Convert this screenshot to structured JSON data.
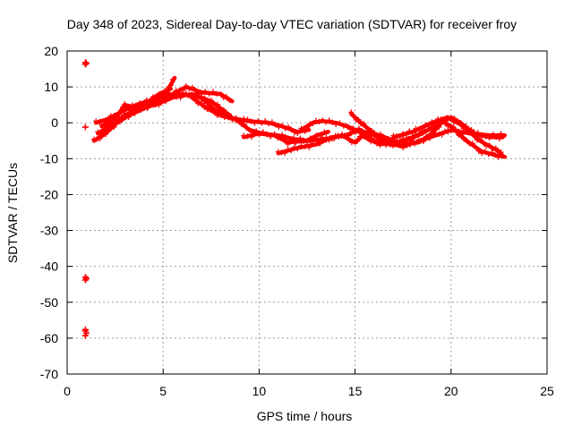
{
  "chart_data": {
    "type": "scatter",
    "title": "Day 348 of 2023, Sidereal Day-to-day VTEC variation (SDTVAR) for receiver froy",
    "xlabel": "GPS time / hours",
    "ylabel": "SDTVAR / TECUs",
    "xlim": [
      0,
      25
    ],
    "ylim": [
      -70,
      20
    ],
    "xticks": [
      "0",
      "5",
      "10",
      "15",
      "20",
      "25"
    ],
    "yticks": [
      "20",
      "10",
      "0",
      "-10",
      "-20",
      "-30",
      "-40",
      "-50",
      "-60",
      "-70"
    ],
    "grid": true,
    "marker": "+",
    "series_color": "#ff0000",
    "outliers": [
      {
        "x": 0.95,
        "y": 16.8
      },
      {
        "x": 0.95,
        "y": 16.3
      },
      {
        "x": 1.0,
        "y": 16.6
      },
      {
        "x": 0.95,
        "y": -1.2
      },
      {
        "x": 0.95,
        "y": -43.0
      },
      {
        "x": 0.95,
        "y": -43.8
      },
      {
        "x": 1.0,
        "y": -43.4
      },
      {
        "x": 0.95,
        "y": -58.0
      },
      {
        "x": 0.95,
        "y": -59.3
      },
      {
        "x": 1.0,
        "y": -58.6
      },
      {
        "x": 0.95,
        "y": -57.6
      }
    ],
    "tracks": [
      [
        [
          1.4,
          -5
        ],
        [
          2,
          -3
        ],
        [
          2.6,
          0
        ],
        [
          3.2,
          2
        ],
        [
          4,
          4
        ],
        [
          5,
          7
        ],
        [
          5.6,
          12.5
        ]
      ],
      [
        [
          1.6,
          -3
        ],
        [
          2.2,
          -1
        ],
        [
          3,
          2
        ],
        [
          4,
          5
        ],
        [
          4.8,
          8
        ],
        [
          5.4,
          9.5
        ]
      ],
      [
        [
          1.5,
          0
        ],
        [
          2.1,
          1
        ],
        [
          2.8,
          3
        ],
        [
          3.6,
          5
        ],
        [
          4.5,
          6.5
        ],
        [
          5.5,
          8
        ]
      ],
      [
        [
          1.8,
          -1
        ],
        [
          2.5,
          1
        ],
        [
          3,
          5
        ],
        [
          3.8,
          4
        ],
        [
          4.6,
          5
        ],
        [
          5.5,
          7
        ],
        [
          6.5,
          8
        ],
        [
          7.5,
          6
        ],
        [
          8,
          4
        ],
        [
          8.5,
          2
        ]
      ],
      [
        [
          4.5,
          5
        ],
        [
          5.5,
          8
        ],
        [
          6.2,
          10
        ],
        [
          7,
          8.5
        ],
        [
          8,
          8
        ],
        [
          8.6,
          6
        ]
      ],
      [
        [
          5,
          7
        ],
        [
          6,
          8
        ],
        [
          7,
          7
        ],
        [
          7.6,
          4
        ],
        [
          8.4,
          1.5
        ],
        [
          9.4,
          0.5
        ],
        [
          10.5,
          0
        ],
        [
          11.2,
          -1
        ],
        [
          12,
          -2.5
        ],
        [
          12.6,
          -2
        ]
      ],
      [
        [
          6.5,
          7
        ],
        [
          7.3,
          4
        ],
        [
          8,
          2
        ],
        [
          8.8,
          1
        ],
        [
          9.5,
          -2
        ],
        [
          10.2,
          -3
        ],
        [
          11,
          -3.5
        ],
        [
          11.8,
          -4.5
        ],
        [
          12.5,
          -5
        ],
        [
          13,
          -3.5
        ],
        [
          13.6,
          -2.5
        ]
      ],
      [
        [
          9.2,
          -4
        ],
        [
          10,
          -3
        ],
        [
          10.8,
          -3.5
        ],
        [
          11.5,
          -5.5
        ],
        [
          12.5,
          -5
        ],
        [
          13.5,
          -4.5
        ],
        [
          14.3,
          -3.5
        ],
        [
          15,
          -5.5
        ],
        [
          15.5,
          -3
        ]
      ],
      [
        [
          11,
          -8.5
        ],
        [
          12,
          -7
        ],
        [
          13,
          -6
        ],
        [
          13.8,
          -4
        ],
        [
          14.5,
          -3.5
        ],
        [
          15.2,
          -2
        ],
        [
          16,
          -3.5
        ],
        [
          16.8,
          -6
        ],
        [
          17.6,
          -5
        ],
        [
          18.5,
          -3
        ]
      ],
      [
        [
          12.2,
          -2
        ],
        [
          12.8,
          0
        ],
        [
          13.3,
          0.5
        ],
        [
          14,
          0
        ],
        [
          14.6,
          -1
        ],
        [
          15.2,
          -2.5
        ],
        [
          16,
          -5
        ],
        [
          16.8,
          -6
        ],
        [
          17.5,
          -6.5
        ],
        [
          18.4,
          -5
        ],
        [
          19.2,
          -3.5
        ],
        [
          20,
          -2
        ],
        [
          21,
          -3
        ],
        [
          22,
          -3.5
        ],
        [
          22.8,
          -3.5
        ]
      ],
      [
        [
          14.8,
          2.5
        ],
        [
          15.3,
          0
        ],
        [
          16,
          -3
        ],
        [
          16.8,
          -4.5
        ],
        [
          17.5,
          -6
        ],
        [
          18.3,
          -5.5
        ],
        [
          19,
          -3
        ],
        [
          19.5,
          0
        ],
        [
          20,
          1.5
        ],
        [
          20.5,
          0
        ],
        [
          21.2,
          -3
        ],
        [
          22,
          -4
        ],
        [
          22.7,
          -4
        ]
      ],
      [
        [
          15.5,
          -4
        ],
        [
          16.3,
          -6
        ],
        [
          17.2,
          -5.5
        ],
        [
          18,
          -4
        ],
        [
          18.8,
          -2
        ],
        [
          19.5,
          0.5
        ],
        [
          20,
          -1
        ],
        [
          20.8,
          -5
        ],
        [
          21.6,
          -8
        ],
        [
          22.3,
          -9
        ],
        [
          22.8,
          -9.5
        ]
      ],
      [
        [
          17,
          -4
        ],
        [
          18,
          -2.5
        ],
        [
          19,
          0
        ],
        [
          19.8,
          1.5
        ],
        [
          20.5,
          -0.5
        ],
        [
          21.5,
          -5
        ],
        [
          22.5,
          -8
        ],
        [
          22.7,
          -9.3
        ]
      ]
    ]
  }
}
